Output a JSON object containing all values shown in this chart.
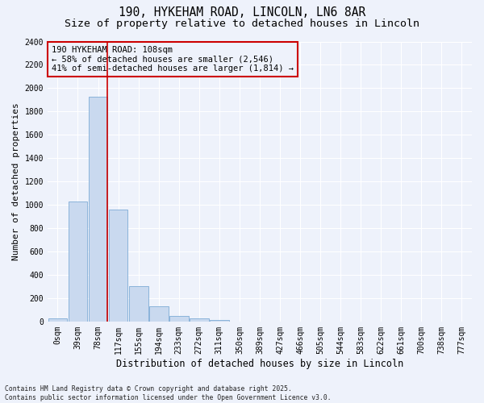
{
  "title": "190, HYKEHAM ROAD, LINCOLN, LN6 8AR",
  "subtitle": "Size of property relative to detached houses in Lincoln",
  "xlabel": "Distribution of detached houses by size in Lincoln",
  "ylabel": "Number of detached properties",
  "bar_color": "#c9d9ef",
  "bar_edge_color": "#6a9fd0",
  "vline_color": "#cc0000",
  "vline_x_index": 2.47,
  "annotation_text": "190 HYKEHAM ROAD: 108sqm\n← 58% of detached houses are smaller (2,546)\n41% of semi-detached houses are larger (1,814) →",
  "categories": [
    "0sqm",
    "39sqm",
    "78sqm",
    "117sqm",
    "155sqm",
    "194sqm",
    "233sqm",
    "272sqm",
    "311sqm",
    "350sqm",
    "389sqm",
    "427sqm",
    "466sqm",
    "505sqm",
    "544sqm",
    "583sqm",
    "622sqm",
    "661sqm",
    "700sqm",
    "738sqm",
    "777sqm"
  ],
  "values": [
    28,
    1030,
    1930,
    960,
    300,
    130,
    50,
    25,
    10,
    0,
    0,
    0,
    0,
    0,
    0,
    0,
    0,
    0,
    0,
    0,
    0
  ],
  "ylim": [
    0,
    2400
  ],
  "yticks": [
    0,
    200,
    400,
    600,
    800,
    1000,
    1200,
    1400,
    1600,
    1800,
    2000,
    2200,
    2400
  ],
  "footer": "Contains HM Land Registry data © Crown copyright and database right 2025.\nContains public sector information licensed under the Open Government Licence v3.0.",
  "background_color": "#eef2fb",
  "grid_color": "#ffffff",
  "title_fontsize": 10.5,
  "subtitle_fontsize": 9.5,
  "tick_fontsize": 7,
  "ylabel_fontsize": 8,
  "xlabel_fontsize": 8.5,
  "annotation_fontsize": 7.5,
  "footer_fontsize": 5.8
}
